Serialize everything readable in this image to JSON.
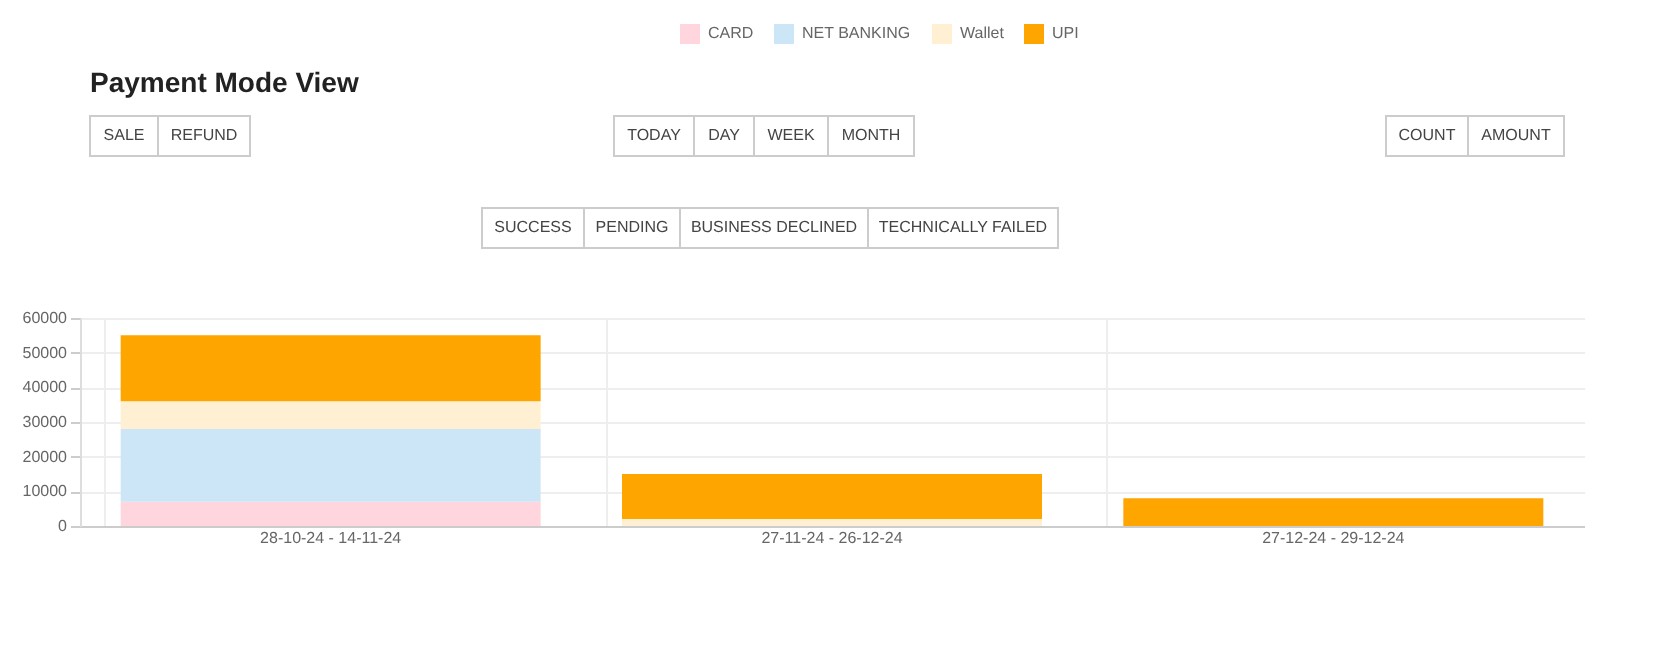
{
  "chart_data": {
    "type": "bar",
    "title": "Payment Mode View",
    "stacked": true,
    "categories": [
      "28-10-24 - 14-11-24",
      "27-11-24 - 26-12-24",
      "27-12-24 - 29-12-24"
    ],
    "series": [
      {
        "name": "CARD",
        "color": "#ffd6de",
        "values": [
          7000,
          0,
          0
        ]
      },
      {
        "name": "NET BANKING",
        "color": "#cde6f7",
        "values": [
          21000,
          0,
          0
        ]
      },
      {
        "name": "Wallet",
        "color": "#fff0d4",
        "values": [
          8000,
          2000,
          0
        ]
      },
      {
        "name": "UPI",
        "color": "#ffa500",
        "values": [
          19000,
          13000,
          8000
        ]
      }
    ],
    "ylim": [
      0,
      60000
    ],
    "yticks": [
      0,
      10000,
      20000,
      30000,
      40000,
      50000,
      60000
    ],
    "grid": true,
    "legend": "top",
    "annotations": [
      "SALE",
      "REFUND",
      "TODAY",
      "DAY",
      "WEEK",
      "MONTH",
      "COUNT",
      "AMOUNT",
      "SUCCESS",
      "PENDING",
      "BUSINESS DECLINED",
      "TECHNICALLY FAILED"
    ]
  }
}
